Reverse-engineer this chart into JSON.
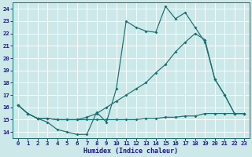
{
  "xlabel": "Humidex (Indice chaleur)",
  "background_color": "#cce8e8",
  "line_color": "#1a7070",
  "xlim": [
    -0.5,
    23.5
  ],
  "ylim": [
    13.5,
    24.5
  ],
  "xticks": [
    0,
    1,
    2,
    3,
    4,
    5,
    6,
    7,
    8,
    9,
    10,
    11,
    12,
    13,
    14,
    15,
    16,
    17,
    18,
    19,
    20,
    21,
    22,
    23
  ],
  "yticks": [
    14,
    15,
    16,
    17,
    18,
    19,
    20,
    21,
    22,
    23,
    24
  ],
  "s1_x": [
    0,
    1,
    2,
    3,
    4,
    5,
    6,
    7,
    8,
    9,
    10,
    11,
    12,
    13,
    14,
    15,
    16,
    17,
    18,
    19,
    20,
    21,
    22,
    23
  ],
  "s1_y": [
    16.2,
    15.5,
    15.1,
    14.8,
    14.2,
    14.0,
    13.8,
    13.8,
    15.6,
    14.8,
    17.5,
    23.0,
    22.5,
    22.2,
    22.1,
    24.2,
    23.2,
    23.7,
    22.5,
    21.3,
    18.3,
    17.0,
    15.5,
    15.5
  ],
  "s2_x": [
    0,
    1,
    2,
    3,
    4,
    5,
    6,
    7,
    8,
    9,
    10,
    11,
    12,
    13,
    14,
    15,
    16,
    17,
    18,
    19,
    20,
    21,
    22,
    23
  ],
  "s2_y": [
    16.2,
    15.5,
    15.1,
    15.1,
    15.0,
    15.0,
    15.0,
    15.2,
    15.5,
    16.0,
    16.5,
    17.0,
    17.5,
    18.0,
    18.8,
    19.5,
    20.5,
    21.3,
    22.0,
    21.5,
    18.3,
    17.0,
    15.5,
    15.5
  ],
  "s3_x": [
    0,
    1,
    2,
    3,
    4,
    5,
    6,
    7,
    8,
    9,
    10,
    11,
    12,
    13,
    14,
    15,
    16,
    17,
    18,
    19,
    20,
    21,
    22,
    23
  ],
  "s3_y": [
    16.2,
    15.5,
    15.1,
    15.1,
    15.0,
    15.0,
    15.0,
    15.0,
    15.0,
    15.0,
    15.0,
    15.0,
    15.0,
    15.1,
    15.1,
    15.2,
    15.2,
    15.3,
    15.3,
    15.5,
    15.5,
    15.5,
    15.5,
    15.5
  ]
}
